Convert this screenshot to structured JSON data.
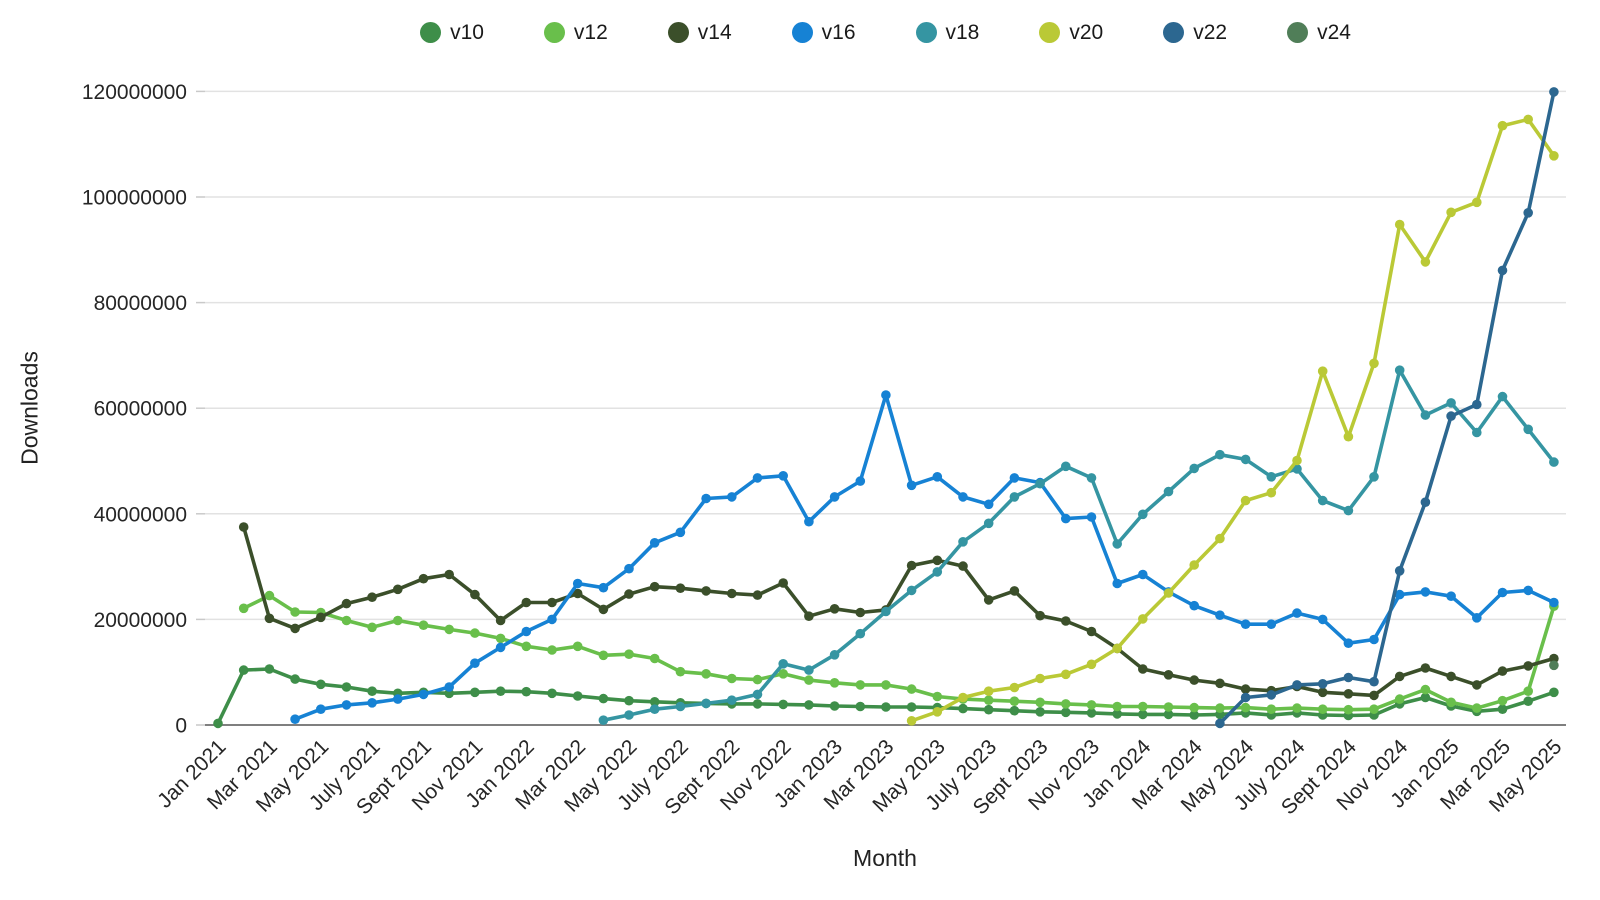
{
  "chart_data": {
    "type": "line",
    "title": "",
    "xlabel": "Month",
    "ylabel": "Downloads",
    "ylim": [
      0,
      120000000
    ],
    "grid": "horizontal-only",
    "legend_position": "top-center",
    "y_ticks": [
      {
        "value": 0,
        "label": "0"
      },
      {
        "value": 20000000,
        "label": "20000000"
      },
      {
        "value": 40000000,
        "label": "40000000"
      },
      {
        "value": 60000000,
        "label": "60000000"
      },
      {
        "value": 80000000,
        "label": "80000000"
      },
      {
        "value": 100000000,
        "label": "100000000"
      },
      {
        "value": 120000000,
        "label": "120000000"
      }
    ],
    "x_tick_labels": [
      "Jan 2021",
      "Mar 2021",
      "May 2021",
      "July 2021",
      "Sept 2021",
      "Nov 2021",
      "Jan 2022",
      "Mar 2022",
      "May 2022",
      "July 2022",
      "Sept 2022",
      "Nov 2022",
      "Jan 2023",
      "Mar 2023",
      "May 2023",
      "July 2023",
      "Sept 2023",
      "Nov 2023",
      "Jan 2024",
      "Mar 2024",
      "May 2024",
      "July 2024",
      "Sept 2024",
      "Nov 2024",
      "Jan 2025",
      "Mar 2025",
      "May 2025"
    ],
    "x_months": [
      "Jan 2021",
      "Feb 2021",
      "Mar 2021",
      "Apr 2021",
      "May 2021",
      "June 2021",
      "July 2021",
      "Aug 2021",
      "Sept 2021",
      "Oct 2021",
      "Nov 2021",
      "Dec 2021",
      "Jan 2022",
      "Feb 2022",
      "Mar 2022",
      "Apr 2022",
      "May 2022",
      "June 2022",
      "July 2022",
      "Aug 2022",
      "Sept 2022",
      "Oct 2022",
      "Nov 2022",
      "Dec 2022",
      "Jan 2023",
      "Feb 2023",
      "Mar 2023",
      "Apr 2023",
      "May 2023",
      "June 2023",
      "July 2023",
      "Aug 2023",
      "Sept 2023",
      "Oct 2023",
      "Nov 2023",
      "Dec 2023",
      "Jan 2024",
      "Feb 2024",
      "Mar 2024",
      "Apr 2024",
      "May 2024",
      "June 2024",
      "July 2024",
      "Aug 2024",
      "Sept 2024",
      "Oct 2024",
      "Nov 2024",
      "Dec 2024",
      "Jan 2025",
      "Feb 2025",
      "Mar 2025",
      "Apr 2025",
      "May 2025"
    ],
    "series": [
      {
        "name": "v10",
        "color": "#3e8e49",
        "values": [
          300000,
          10400000,
          10600000,
          8700000,
          7700000,
          7200000,
          6400000,
          6000000,
          6200000,
          6000000,
          6200000,
          6400000,
          6300000,
          6000000,
          5500000,
          5000000,
          4600000,
          4400000,
          4200000,
          4100000,
          4000000,
          4000000,
          3900000,
          3800000,
          3600000,
          3500000,
          3400000,
          3400000,
          3300000,
          3100000,
          2900000,
          2700000,
          2500000,
          2400000,
          2300000,
          2100000,
          2000000,
          2000000,
          1900000,
          2000000,
          2300000,
          1900000,
          2300000,
          1900000,
          1800000,
          1900000,
          4000000,
          5200000,
          3600000,
          2600000,
          3000000,
          4500000,
          6200000
        ]
      },
      {
        "name": "v12",
        "color": "#69bf4b",
        "values": [
          null,
          22100000,
          24500000,
          21400000,
          21300000,
          19800000,
          18500000,
          19800000,
          18900000,
          18100000,
          17400000,
          16400000,
          14900000,
          14200000,
          14900000,
          13200000,
          13400000,
          12600000,
          10100000,
          9700000,
          8800000,
          8600000,
          9700000,
          8500000,
          8000000,
          7600000,
          7600000,
          6800000,
          5400000,
          4900000,
          4700000,
          4500000,
          4300000,
          4000000,
          3800000,
          3500000,
          3500000,
          3400000,
          3300000,
          3200000,
          3300000,
          3000000,
          3200000,
          3000000,
          2900000,
          3000000,
          4900000,
          6700000,
          4300000,
          3200000,
          4600000,
          6400000,
          22500000
        ]
      },
      {
        "name": "v14",
        "color": "#3b4f2a",
        "values": [
          null,
          37500000,
          20200000,
          18300000,
          20400000,
          23000000,
          24200000,
          25700000,
          27700000,
          28500000,
          24700000,
          19800000,
          23200000,
          23200000,
          24900000,
          21900000,
          24800000,
          26200000,
          25900000,
          25400000,
          24900000,
          24600000,
          26900000,
          20600000,
          22000000,
          21300000,
          21800000,
          30200000,
          31200000,
          30100000,
          23700000,
          25400000,
          20700000,
          19700000,
          17700000,
          14500000,
          10600000,
          9500000,
          8500000,
          7900000,
          6800000,
          6500000,
          7300000,
          6200000,
          5900000,
          5600000,
          9200000,
          10800000,
          9200000,
          7600000,
          10200000,
          11200000,
          12600000
        ]
      },
      {
        "name": "v16",
        "color": "#1682d4",
        "values": [
          null,
          null,
          null,
          1100000,
          3000000,
          3800000,
          4200000,
          4900000,
          5800000,
          7200000,
          11700000,
          14700000,
          17700000,
          20000000,
          26800000,
          26000000,
          29600000,
          34500000,
          36500000,
          42900000,
          43200000,
          46800000,
          47200000,
          38500000,
          43200000,
          46200000,
          62500000,
          45400000,
          47000000,
          43200000,
          41800000,
          46800000,
          45900000,
          39100000,
          39400000,
          26800000,
          28500000,
          25200000,
          22600000,
          20800000,
          19100000,
          19100000,
          21200000,
          20000000,
          15500000,
          16200000,
          24700000,
          25200000,
          24400000,
          20300000,
          25100000,
          25500000,
          23200000
        ]
      },
      {
        "name": "v18",
        "color": "#3595a2",
        "values": [
          null,
          null,
          null,
          null,
          null,
          null,
          null,
          null,
          null,
          null,
          null,
          null,
          null,
          null,
          null,
          900000,
          1900000,
          3000000,
          3500000,
          4100000,
          4700000,
          5800000,
          11600000,
          10400000,
          13300000,
          17300000,
          21500000,
          25500000,
          29000000,
          34700000,
          38200000,
          43200000,
          45700000,
          49000000,
          46800000,
          34300000,
          39900000,
          44200000,
          48600000,
          51200000,
          50300000,
          47000000,
          48500000,
          42500000,
          40600000,
          47000000,
          67200000,
          58700000,
          61000000,
          55400000,
          62200000,
          56000000,
          49800000
        ]
      },
      {
        "name": "v20",
        "color": "#bac936",
        "values": [
          null,
          null,
          null,
          null,
          null,
          null,
          null,
          null,
          null,
          null,
          null,
          null,
          null,
          null,
          null,
          null,
          null,
          null,
          null,
          null,
          null,
          null,
          null,
          null,
          null,
          null,
          null,
          800000,
          2500000,
          5200000,
          6400000,
          7100000,
          8800000,
          9600000,
          11500000,
          14500000,
          20100000,
          25000000,
          30300000,
          35300000,
          42500000,
          44000000,
          50100000,
          67000000,
          54600000,
          68500000,
          94800000,
          87700000,
          97100000,
          99000000,
          113500000,
          114700000,
          107800000
        ]
      },
      {
        "name": "v22",
        "color": "#2c6790",
        "values": [
          null,
          null,
          null,
          null,
          null,
          null,
          null,
          null,
          null,
          null,
          null,
          null,
          null,
          null,
          null,
          null,
          null,
          null,
          null,
          null,
          null,
          null,
          null,
          null,
          null,
          null,
          null,
          null,
          null,
          null,
          null,
          null,
          null,
          null,
          null,
          null,
          null,
          null,
          null,
          300000,
          5200000,
          5700000,
          7600000,
          7800000,
          9000000,
          8200000,
          29200000,
          42200000,
          58500000,
          60700000,
          86100000,
          97000000,
          119900000
        ]
      },
      {
        "name": "v24",
        "color": "#507e58",
        "values": [
          null,
          null,
          null,
          null,
          null,
          null,
          null,
          null,
          null,
          null,
          null,
          null,
          null,
          null,
          null,
          null,
          null,
          null,
          null,
          null,
          null,
          null,
          null,
          null,
          null,
          null,
          null,
          null,
          null,
          null,
          null,
          null,
          null,
          null,
          null,
          null,
          null,
          null,
          null,
          null,
          null,
          null,
          null,
          null,
          null,
          null,
          null,
          null,
          null,
          null,
          null,
          null,
          11300000
        ]
      }
    ]
  },
  "legend": {
    "items": [
      {
        "label": "v10",
        "color": "#3e8e49"
      },
      {
        "label": "v12",
        "color": "#69bf4b"
      },
      {
        "label": "v14",
        "color": "#3b4f2a"
      },
      {
        "label": "v16",
        "color": "#1682d4"
      },
      {
        "label": "v18",
        "color": "#3595a2"
      },
      {
        "label": "v20",
        "color": "#bac936"
      },
      {
        "label": "v22",
        "color": "#2c6790"
      },
      {
        "label": "v24",
        "color": "#507e58"
      }
    ]
  },
  "style": {
    "gridline_color": "#e2e2e2",
    "zero_axis_color": "#7f7f7f",
    "tick_dash_color": "#c9c9c9",
    "background": "#ffffff"
  }
}
